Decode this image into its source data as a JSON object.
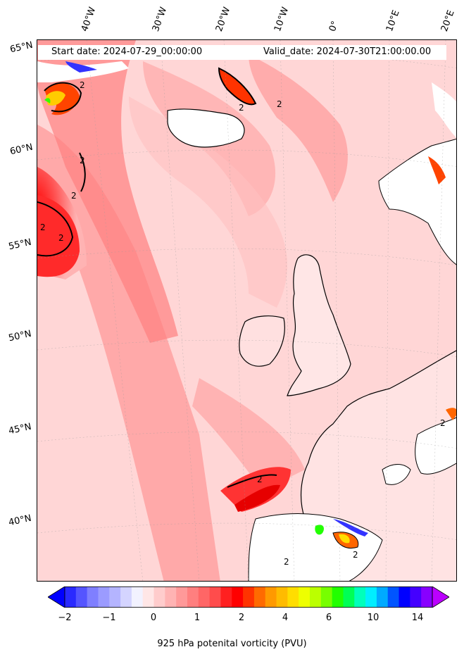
{
  "header": {
    "start_date": "Start date: 2024-07-29_00:00:00",
    "valid_date": "Valid_date: 2024-07-30T21:00:00.00"
  },
  "longitude_labels": [
    "40°W",
    "30°W",
    "20°W",
    "10°W",
    "0°",
    "10°E",
    "20°E"
  ],
  "latitude_labels": [
    "65°N",
    "60°N",
    "55°N",
    "50°N",
    "45°N",
    "40°N"
  ],
  "map": {
    "field": "925 hPa potential vorticity",
    "contour_labels": [
      "2",
      "2",
      "2",
      "2",
      "2",
      "2",
      "2",
      "2",
      "2",
      "2",
      "2"
    ],
    "regions_shown": [
      "Iceland",
      "Ireland",
      "Great Britain",
      "France",
      "Iberian Peninsula",
      "Norway",
      "Greenland tip"
    ]
  },
  "colorbar": {
    "tick_labels": [
      "−2",
      "−1",
      "0",
      "1",
      "2",
      "4",
      "6",
      "10",
      "14"
    ],
    "label": "925 hPa potenital vorticity (PVU)",
    "colors": [
      "#0000ff",
      "#2a2aff",
      "#5555ff",
      "#7f7fff",
      "#9b9bff",
      "#b4b4ff",
      "#d4d4ff",
      "#f2f2ff",
      "#ffe6e6",
      "#ffcccc",
      "#ffb3b3",
      "#ff9999",
      "#ff7f7f",
      "#ff6666",
      "#ff4c4c",
      "#ff2020",
      "#ff0000",
      "#ff3300",
      "#ff6a00",
      "#ff9900",
      "#ffbb00",
      "#ffdd00",
      "#eeff00",
      "#bbff00",
      "#77ff00",
      "#22ff00",
      "#00ff55",
      "#00ffbb",
      "#00eeff",
      "#00aaff",
      "#0055ff",
      "#0000ff",
      "#4400ff",
      "#8800ff",
      "#bb00ff"
    ]
  }
}
